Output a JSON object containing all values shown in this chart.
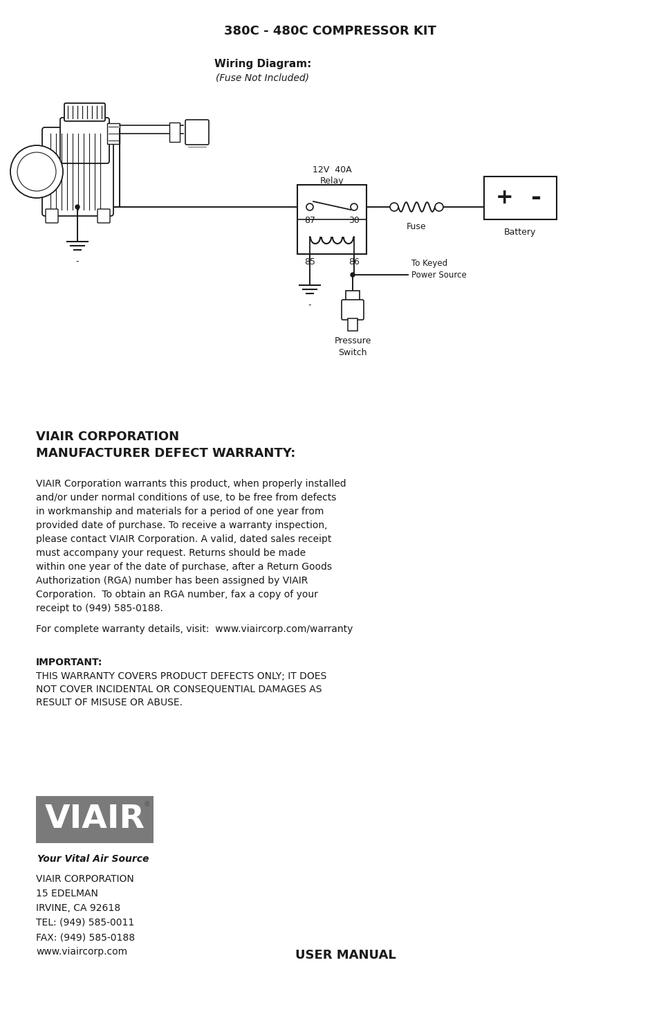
{
  "title": "380C - 480C COMPRESSOR KIT",
  "wiring_title": "Wiring Diagram:",
  "wiring_subtitle": "(Fuse Not Included)",
  "warranty_heading_line1": "VIAIR CORPORATION",
  "warranty_heading_line2": "MANUFACTURER DEFECT WARRANTY:",
  "warranty_body": "VIAIR Corporation warrants this product, when properly installed\nand/or under normal conditions of use, to be free from defects\nin workmanship and materials for a period of one year from\nprovided date of purchase. To receive a warranty inspection,\nplease contact VIAIR Corporation. A valid, dated sales receipt\nmust accompany your request. Returns should be made\nwithin one year of the date of purchase, after a Return Goods\nAuthorization (RGA) number has been assigned by VIAIR\nCorporation.  To obtain an RGA number, fax a copy of your\nreceipt to (949) 585-0188.",
  "warranty_visit": "For complete warranty details, visit:  www.viaircorp.com/warranty",
  "important_label": "IMPORTANT:",
  "important_body": "THIS WARRANTY COVERS PRODUCT DEFECTS ONLY; IT DOES\nNOT COVER INCIDENTAL OR CONSEQUENTIAL DAMAGES AS\nRESULT OF MISUSE OR ABUSE.",
  "company_name": "VIAIR CORPORATION",
  "address_line1": "15 EDELMAN",
  "address_line2": "IRVINE, CA 92618",
  "address_line3": "TEL: (949) 585-0011",
  "address_line4": "FAX: (949) 585-0188",
  "address_line5": "www.viaircorp.com",
  "user_manual": "USER MANUAL",
  "tagline": "Your Vital Air Source",
  "bg_color": "#ffffff",
  "text_color": "#1a1a1a",
  "diagram_color": "#1a1a1a",
  "logo_bg": "#7a7a7a",
  "relay_label": "12V  40A\nRelay",
  "fuse_label": "Fuse",
  "battery_label": "Battery",
  "to_keyed_label": "To Keyed\nPower Source",
  "pressure_switch_label": "Pressure\nSwitch",
  "pin_87": "87",
  "pin_30": "30",
  "pin_85": "85",
  "pin_86": "86"
}
